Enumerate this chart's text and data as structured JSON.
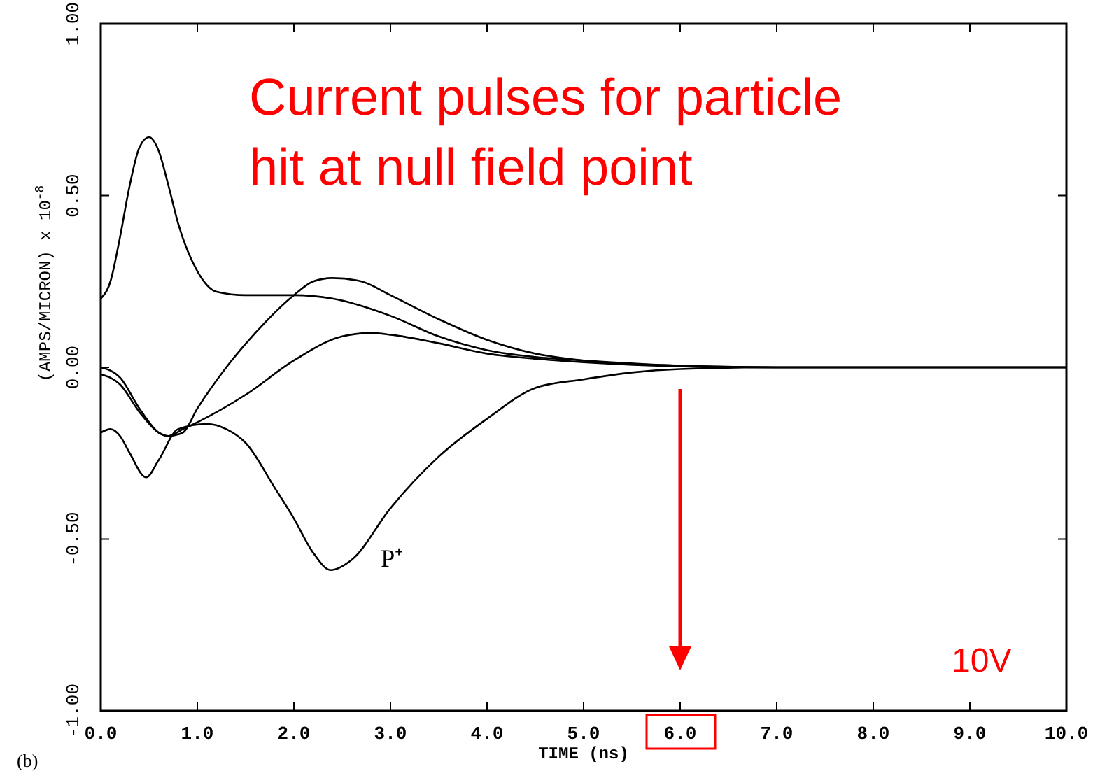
{
  "chart_data": {
    "type": "line",
    "xlabel": "TIME (ns)",
    "ylabel": "(AMPS/MICRON) x 10$^{-8}$",
    "xlim": [
      0,
      10
    ],
    "ylim": [
      -1,
      1
    ],
    "xticks": [
      {
        "value": 0,
        "label": "0.0"
      },
      {
        "value": 1,
        "label": "1.0"
      },
      {
        "value": 2,
        "label": "2.0"
      },
      {
        "value": 3,
        "label": "3.0"
      },
      {
        "value": 4,
        "label": "4.0"
      },
      {
        "value": 5,
        "label": "5.0"
      },
      {
        "value": 6,
        "label": "6.0"
      },
      {
        "value": 7,
        "label": "7.0"
      },
      {
        "value": 8,
        "label": "8.0"
      },
      {
        "value": 9,
        "label": "9.0"
      },
      {
        "value": 10,
        "label": "10.0"
      }
    ],
    "yticks": [
      {
        "value": -1,
        "label": "-1.00"
      },
      {
        "value": -0.5,
        "label": "-0.50"
      },
      {
        "value": 0,
        "label": "0.00"
      },
      {
        "value": 0.5,
        "label": "0.50"
      },
      {
        "value": 1,
        "label": "1.00"
      }
    ],
    "grid": false,
    "marker": "none",
    "line_style": "solid",
    "series": [
      {
        "color": "#000000",
        "x": [
          0,
          0.1,
          0.2,
          0.3,
          0.4,
          0.5,
          0.6,
          0.7,
          0.8,
          1.0,
          1.2,
          1.5,
          2.0,
          2.4,
          3.0,
          3.5,
          4.0,
          4.5,
          5.0,
          6.0,
          7.0,
          10.0
        ],
        "values": [
          0.2,
          0.25,
          0.38,
          0.53,
          0.64,
          0.67,
          0.63,
          0.53,
          0.42,
          0.28,
          0.22,
          0.21,
          0.21,
          0.2,
          0.15,
          0.09,
          0.05,
          0.03,
          0.02,
          0.005,
          0,
          0
        ]
      },
      {
        "color": "#000000",
        "x": [
          0,
          0.2,
          0.4,
          0.6,
          0.7,
          0.85,
          1.0,
          1.3,
          1.6,
          2.0,
          2.2,
          2.4,
          2.7,
          3.0,
          3.5,
          4.0,
          4.5,
          5.0,
          6.0,
          7.0,
          10.0
        ],
        "values": [
          0,
          -0.03,
          -0.12,
          -0.19,
          -0.2,
          -0.19,
          -0.12,
          0.0,
          0.1,
          0.21,
          0.25,
          0.26,
          0.25,
          0.21,
          0.14,
          0.08,
          0.04,
          0.02,
          0.005,
          0,
          0
        ]
      },
      {
        "color": "#000000",
        "x": [
          0,
          0.2,
          0.4,
          0.6,
          0.7,
          0.85,
          1.0,
          1.5,
          2.0,
          2.5,
          2.8,
          3.0,
          3.5,
          4.0,
          4.5,
          5.0,
          6.0,
          7.0,
          10.0
        ],
        "values": [
          -0.02,
          -0.05,
          -0.13,
          -0.19,
          -0.2,
          -0.18,
          -0.16,
          -0.08,
          0.02,
          0.09,
          0.1,
          0.095,
          0.07,
          0.04,
          0.025,
          0.015,
          0.003,
          0,
          0
        ]
      },
      {
        "color": "#000000",
        "x": [
          0,
          0.1,
          0.2,
          0.3,
          0.47,
          0.6,
          0.8,
          1.1,
          1.3,
          1.5,
          1.8,
          2.0,
          2.2,
          2.38,
          2.6,
          3.0,
          3.5,
          4.0,
          4.5,
          5.0,
          5.5,
          6.0,
          7.0,
          10.0
        ],
        "values": [
          -0.19,
          -0.18,
          -0.2,
          -0.25,
          -0.32,
          -0.27,
          -0.18,
          -0.165,
          -0.18,
          -0.22,
          -0.35,
          -0.44,
          -0.54,
          -0.59,
          -0.56,
          -0.41,
          -0.26,
          -0.15,
          -0.06,
          -0.035,
          -0.015,
          -0.005,
          0,
          0
        ]
      }
    ],
    "annotations": [
      "Current pulses for particle hit at null field point",
      "P⁺",
      "10V",
      "(b)"
    ]
  }
}
